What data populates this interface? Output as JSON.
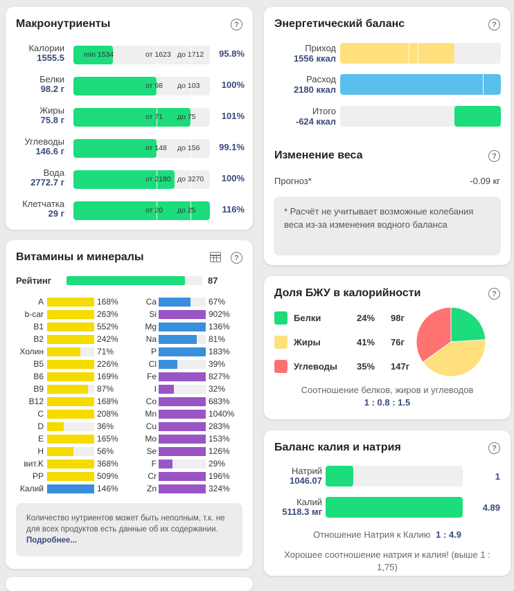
{
  "macros": {
    "title": "Макронутриенты",
    "rows": [
      {
        "label": "Калории",
        "value": "1555.5",
        "pct": "95.8%",
        "fill": 0.29,
        "min": "min 1534",
        "from": "от 1623",
        "to": "до 1712"
      },
      {
        "label": "Белки",
        "value": "98.2 г",
        "pct": "100%",
        "fill": 0.61,
        "from": "от 98",
        "to": "до 103"
      },
      {
        "label": "Жиры",
        "value": "75.8 г",
        "pct": "101%",
        "fill": 0.86,
        "from": "от 71",
        "to": "до 75"
      },
      {
        "label": "Углеводы",
        "value": "146.6 г",
        "pct": "99.1%",
        "fill": 0.61,
        "from": "от 148",
        "to": "до 156"
      },
      {
        "label": "Вода",
        "value": "2772.7 г",
        "pct": "100%",
        "fill": 0.74,
        "from": "от 2180",
        "to": "до 3270"
      },
      {
        "label": "Клетчатка",
        "value": "29 г",
        "pct": "116%",
        "fill": 1.0,
        "from": "от 20",
        "to": "до 25"
      }
    ]
  },
  "vitamins": {
    "title": "Витамины и минералы",
    "rating_label": "Рейтинг",
    "rating_value": "87",
    "rating_fill": 0.87,
    "left": [
      {
        "name": "A",
        "val": "168%",
        "pct": 168,
        "color": "yellow"
      },
      {
        "name": "b-car",
        "val": "263%",
        "pct": 263,
        "color": "yellow"
      },
      {
        "name": "B1",
        "val": "552%",
        "pct": 552,
        "color": "yellow"
      },
      {
        "name": "B2",
        "val": "242%",
        "pct": 242,
        "color": "yellow"
      },
      {
        "name": "Холин",
        "val": "71%",
        "pct": 71,
        "color": "yellow"
      },
      {
        "name": "B5",
        "val": "226%",
        "pct": 226,
        "color": "yellow"
      },
      {
        "name": "B6",
        "val": "169%",
        "pct": 169,
        "color": "yellow"
      },
      {
        "name": "B9",
        "val": "87%",
        "pct": 87,
        "color": "yellow"
      },
      {
        "name": "B12",
        "val": "168%",
        "pct": 168,
        "color": "yellow"
      },
      {
        "name": "C",
        "val": "208%",
        "pct": 208,
        "color": "yellow"
      },
      {
        "name": "D",
        "val": "36%",
        "pct": 36,
        "color": "yellow"
      },
      {
        "name": "E",
        "val": "165%",
        "pct": 165,
        "color": "yellow"
      },
      {
        "name": "H",
        "val": "56%",
        "pct": 56,
        "color": "yellow"
      },
      {
        "name": "вит.K",
        "val": "368%",
        "pct": 368,
        "color": "yellow"
      },
      {
        "name": "PP",
        "val": "509%",
        "pct": 509,
        "color": "yellow"
      },
      {
        "name": "Калий",
        "val": "146%",
        "pct": 146,
        "color": "blue"
      }
    ],
    "right": [
      {
        "name": "Ca",
        "val": "67%",
        "pct": 67,
        "color": "blue"
      },
      {
        "name": "Si",
        "val": "902%",
        "pct": 902,
        "color": "purple"
      },
      {
        "name": "Mg",
        "val": "136%",
        "pct": 136,
        "color": "blue"
      },
      {
        "name": "Na",
        "val": "81%",
        "pct": 81,
        "color": "blue"
      },
      {
        "name": "P",
        "val": "183%",
        "pct": 183,
        "color": "blue"
      },
      {
        "name": "Cl",
        "val": "39%",
        "pct": 39,
        "color": "blue"
      },
      {
        "name": "Fe",
        "val": "827%",
        "pct": 827,
        "color": "purple"
      },
      {
        "name": "I",
        "val": "32%",
        "pct": 32,
        "color": "purple"
      },
      {
        "name": "Co",
        "val": "683%",
        "pct": 683,
        "color": "purple"
      },
      {
        "name": "Mn",
        "val": "1040%",
        "pct": 1040,
        "color": "purple"
      },
      {
        "name": "Cu",
        "val": "283%",
        "pct": 283,
        "color": "purple"
      },
      {
        "name": "Mo",
        "val": "153%",
        "pct": 153,
        "color": "purple"
      },
      {
        "name": "Se",
        "val": "126%",
        "pct": 126,
        "color": "purple"
      },
      {
        "name": "F",
        "val": "29%",
        "pct": 29,
        "color": "purple"
      },
      {
        "name": "Cr",
        "val": "196%",
        "pct": 196,
        "color": "purple"
      },
      {
        "name": "Zn",
        "val": "324%",
        "pct": 324,
        "color": "purple"
      }
    ],
    "note": "Количество нутриентов может быть неполным, т.к. не для всех продуктов есть данные об их содержании.",
    "more_link": "Подробнее..."
  },
  "energy": {
    "title": "Энергетический баланс",
    "income_label": "Приход",
    "income_value": "1556 ккал",
    "income_fill": 0.71,
    "expense_label": "Расход",
    "expense_value": "2180 ккал",
    "expense_fill": 1.0,
    "total_label": "Итого",
    "total_value": "-624 ккал",
    "total_fill": 0.29,
    "weight_title": "Изменение веса",
    "forecast_label": "Прогноз*",
    "forecast_value": "-0.09 кг",
    "note": "* Расчёт не учитывает возможные колебания веса из-за изменения водного баланса"
  },
  "bju": {
    "title": "Доля БЖУ в калорийности",
    "items": [
      {
        "label": "Белки",
        "pct": "24%",
        "grams": "98г",
        "color": "#1cdc7c",
        "share": 24
      },
      {
        "label": "Жиры",
        "pct": "41%",
        "grams": "76г",
        "color": "#ffe07d",
        "share": 41
      },
      {
        "label": "Углеводы",
        "pct": "35%",
        "grams": "147г",
        "color": "#ff7272",
        "share": 35
      }
    ],
    "ratio_caption": "Соотношение белков, жиров и углеводов",
    "ratio_value": "1 : 0.8 : 1.5"
  },
  "kna": {
    "title": "Баланс калия и натрия",
    "na_label": "Натрий",
    "na_value": "1046.07",
    "na_ratio": "1",
    "na_fill": 0.2,
    "k_label": "Калий",
    "k_value": "5118.3 мг",
    "k_ratio": "4.89",
    "k_fill": 1.0,
    "ratio_caption": "Отношение Натрия к Калию",
    "ratio_value": "1 : 4.9",
    "message": "Хорошее соотношение натрия и калия! (выше 1 : 1,75)"
  },
  "colors": {
    "green": "#1cdc7c",
    "yellow": "#f5db00",
    "blue": "#3a8fdc",
    "purple": "#9a55c4",
    "income": "#ffe07d",
    "expense": "#5bbfed",
    "total": "#1cdc7c"
  }
}
